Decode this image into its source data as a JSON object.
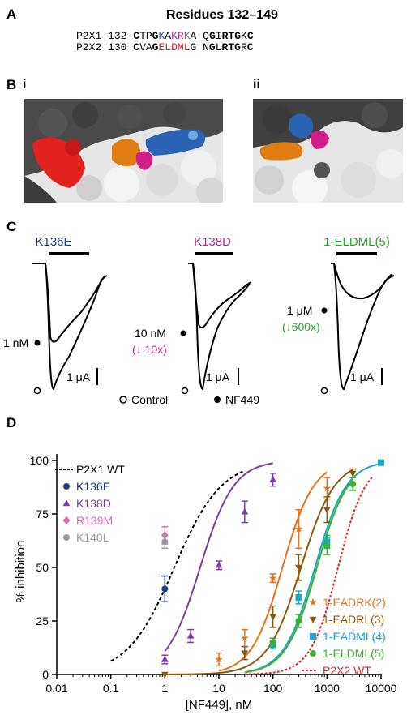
{
  "panel_a": {
    "letter": "A",
    "title": "Residues 132–149",
    "rows": [
      {
        "name": "P2X1",
        "num": "132",
        "segs": [
          {
            "t": "C",
            "c": "#000000",
            "b": true
          },
          {
            "t": "TP",
            "c": "#000000",
            "b": false
          },
          {
            "t": "G",
            "c": "#000000",
            "b": true
          },
          {
            "t": "K",
            "c": "#1f56a6",
            "b": false
          },
          {
            "t": "A",
            "c": "#000000",
            "b": false
          },
          {
            "t": "K",
            "c": "#b02a8c",
            "b": false
          },
          {
            "t": "R",
            "c": "#b02a8c",
            "b": false
          },
          {
            "t": "K",
            "c": "#777777",
            "b": false
          },
          {
            "t": "A",
            "c": "#000000",
            "b": false
          },
          {
            "t": " Q",
            "c": "#000000",
            "b": false
          },
          {
            "t": "G",
            "c": "#000000",
            "b": true
          },
          {
            "t": "I",
            "c": "#000000",
            "b": false
          },
          {
            "t": "RTG",
            "c": "#000000",
            "b": true
          },
          {
            "t": "K",
            "c": "#000000",
            "b": false
          },
          {
            "t": "C",
            "c": "#000000",
            "b": true
          }
        ]
      },
      {
        "name": "P2X2",
        "num": "130",
        "segs": [
          {
            "t": "C",
            "c": "#000000",
            "b": true
          },
          {
            "t": "VA",
            "c": "#000000",
            "b": false
          },
          {
            "t": "G",
            "c": "#000000",
            "b": true
          },
          {
            "t": "ELDML",
            "c": "#d7282a",
            "b": false
          },
          {
            "t": "G",
            "c": "#000000",
            "b": false
          },
          {
            "t": " N",
            "c": "#000000",
            "b": false
          },
          {
            "t": "G",
            "c": "#000000",
            "b": true
          },
          {
            "t": "L",
            "c": "#000000",
            "b": false
          },
          {
            "t": "RTG",
            "c": "#000000",
            "b": true
          },
          {
            "t": "R",
            "c": "#000000",
            "b": false
          },
          {
            "t": "C",
            "c": "#000000",
            "b": true
          }
        ]
      }
    ]
  },
  "panel_b": {
    "letter": "B",
    "sub_i": "i",
    "sub_ii": "ii"
  },
  "panel_c": {
    "letter": "C",
    "traces": [
      {
        "title": "K136E",
        "title_color": "#1f3d7a",
        "conc": "1 nM",
        "fold": "",
        "fold_color": "#000000",
        "scale": "1 μA"
      },
      {
        "title": "K138D",
        "title_color": "#b02a8c",
        "conc": "10 nM",
        "fold": "(↓ 10x)",
        "fold_color": "#b02a8c",
        "scale": "1 μA"
      },
      {
        "title": "1-ELDML(5)",
        "title_color": "#2ca02c",
        "conc": "1 μM",
        "fold": "(↓600x)",
        "fold_color": "#2ca02c",
        "scale": "1 μA"
      }
    ],
    "legend_control": "Control",
    "legend_nf": "NF449"
  },
  "panel_d": {
    "letter": "D"
  },
  "chart_data": {
    "type": "scatter",
    "xlabel": "[NF449], nM",
    "ylabel": "% inhibition",
    "xscale": "log",
    "xlim": [
      0.01,
      10000
    ],
    "ylim": [
      0,
      100
    ],
    "xticks": [
      "0.01",
      "0.1",
      "1",
      "10",
      "100",
      "1000",
      "10000"
    ],
    "yticks": [
      "0",
      "25",
      "50",
      "75",
      "100"
    ],
    "legend_left": [
      {
        "label": "P2X1 WT",
        "color": "#000000",
        "marker": "dash"
      },
      {
        "label": "K136E",
        "color": "#1f3d7a",
        "marker": "circle"
      },
      {
        "label": "K138D",
        "color": "#7b3fa0",
        "marker": "triangle"
      },
      {
        "label": "R139M",
        "color": "#d66bb4",
        "marker": "diamond"
      },
      {
        "label": "K140L",
        "color": "#9a9a9a",
        "marker": "circle"
      }
    ],
    "legend_right": [
      {
        "label": "1-EADRK(2)",
        "color": "#e8711c",
        "marker": "star"
      },
      {
        "label": "1-EADRL(3)",
        "color": "#8b5a12",
        "marker": "down-triangle"
      },
      {
        "label": "1-EADML(4)",
        "color": "#1aa6c4",
        "marker": "square"
      },
      {
        "label": "1-ELDML(5)",
        "color": "#3cb031",
        "marker": "circle"
      },
      {
        "label": "P2X2 WT",
        "color": "#d7282a",
        "marker": "dot"
      }
    ],
    "series": [
      {
        "name": "K136E",
        "color": "#1f3d7a",
        "marker": "circle",
        "points": [
          [
            1,
            40,
            6
          ]
        ]
      },
      {
        "name": "R139M",
        "color": "#d66bb4",
        "marker": "diamond",
        "points": [
          [
            1,
            65,
            4
          ]
        ]
      },
      {
        "name": "K140L",
        "color": "#9a9a9a",
        "marker": "circle",
        "points": [
          [
            1,
            62,
            3
          ]
        ]
      },
      {
        "name": "K138D",
        "color": "#7b3fa0",
        "marker": "triangle",
        "ic50": 4.5,
        "hill": 1.4,
        "fit_x": [
          1,
          100
        ],
        "points": [
          [
            1,
            7,
            2
          ],
          [
            3,
            18,
            3
          ],
          [
            10,
            51,
            2
          ],
          [
            30,
            76,
            5
          ],
          [
            100,
            91,
            3
          ]
        ]
      },
      {
        "name": "1-EADRK(2)",
        "color": "#e8711c",
        "marker": "star",
        "ic50": 150,
        "hill": 1.5,
        "fit_x": [
          10,
          1000
        ],
        "points": [
          [
            10,
            7,
            3
          ],
          [
            30,
            17,
            4
          ],
          [
            100,
            45,
            2
          ],
          [
            300,
            68,
            9
          ],
          [
            1000,
            87,
            5
          ]
        ]
      },
      {
        "name": "1-EADRL(3)",
        "color": "#8b5a12",
        "marker": "down-triangle",
        "ic50": 330,
        "hill": 1.4,
        "fit_x": [
          1,
          3000
        ],
        "points": [
          [
            1,
            0,
            0
          ],
          [
            30,
            10,
            3
          ],
          [
            100,
            27,
            5
          ],
          [
            300,
            50,
            6
          ],
          [
            1000,
            77,
            6
          ],
          [
            3000,
            94,
            2
          ]
        ]
      },
      {
        "name": "1-EADML(4)",
        "color": "#1aa6c4",
        "marker": "square",
        "ic50": 600,
        "hill": 1.5,
        "fit_x": [
          30,
          10000
        ],
        "points": [
          [
            100,
            14,
            2
          ],
          [
            300,
            36,
            3
          ],
          [
            1000,
            62,
            3
          ],
          [
            10000,
            99,
            1
          ]
        ]
      },
      {
        "name": "1-ELDML(5)",
        "color": "#3cb031",
        "marker": "circle",
        "ic50": 650,
        "hill": 1.5,
        "fit_x": [
          30,
          3000
        ],
        "points": [
          [
            100,
            15,
            2
          ],
          [
            300,
            25,
            3
          ],
          [
            1000,
            60,
            4
          ],
          [
            3000,
            89,
            3
          ]
        ]
      }
    ],
    "reference_curves": [
      {
        "name": "P2X1 WT",
        "color": "#000000",
        "dash": "4,3",
        "ic50": 1.5,
        "hill": 1.0,
        "fit_x": [
          0.1,
          30
        ]
      },
      {
        "name": "P2X2 WT",
        "color": "#d7282a",
        "dash": "3,2",
        "ic50": 1600,
        "hill": 1.7,
        "fit_x": [
          30,
          7000
        ]
      }
    ]
  }
}
